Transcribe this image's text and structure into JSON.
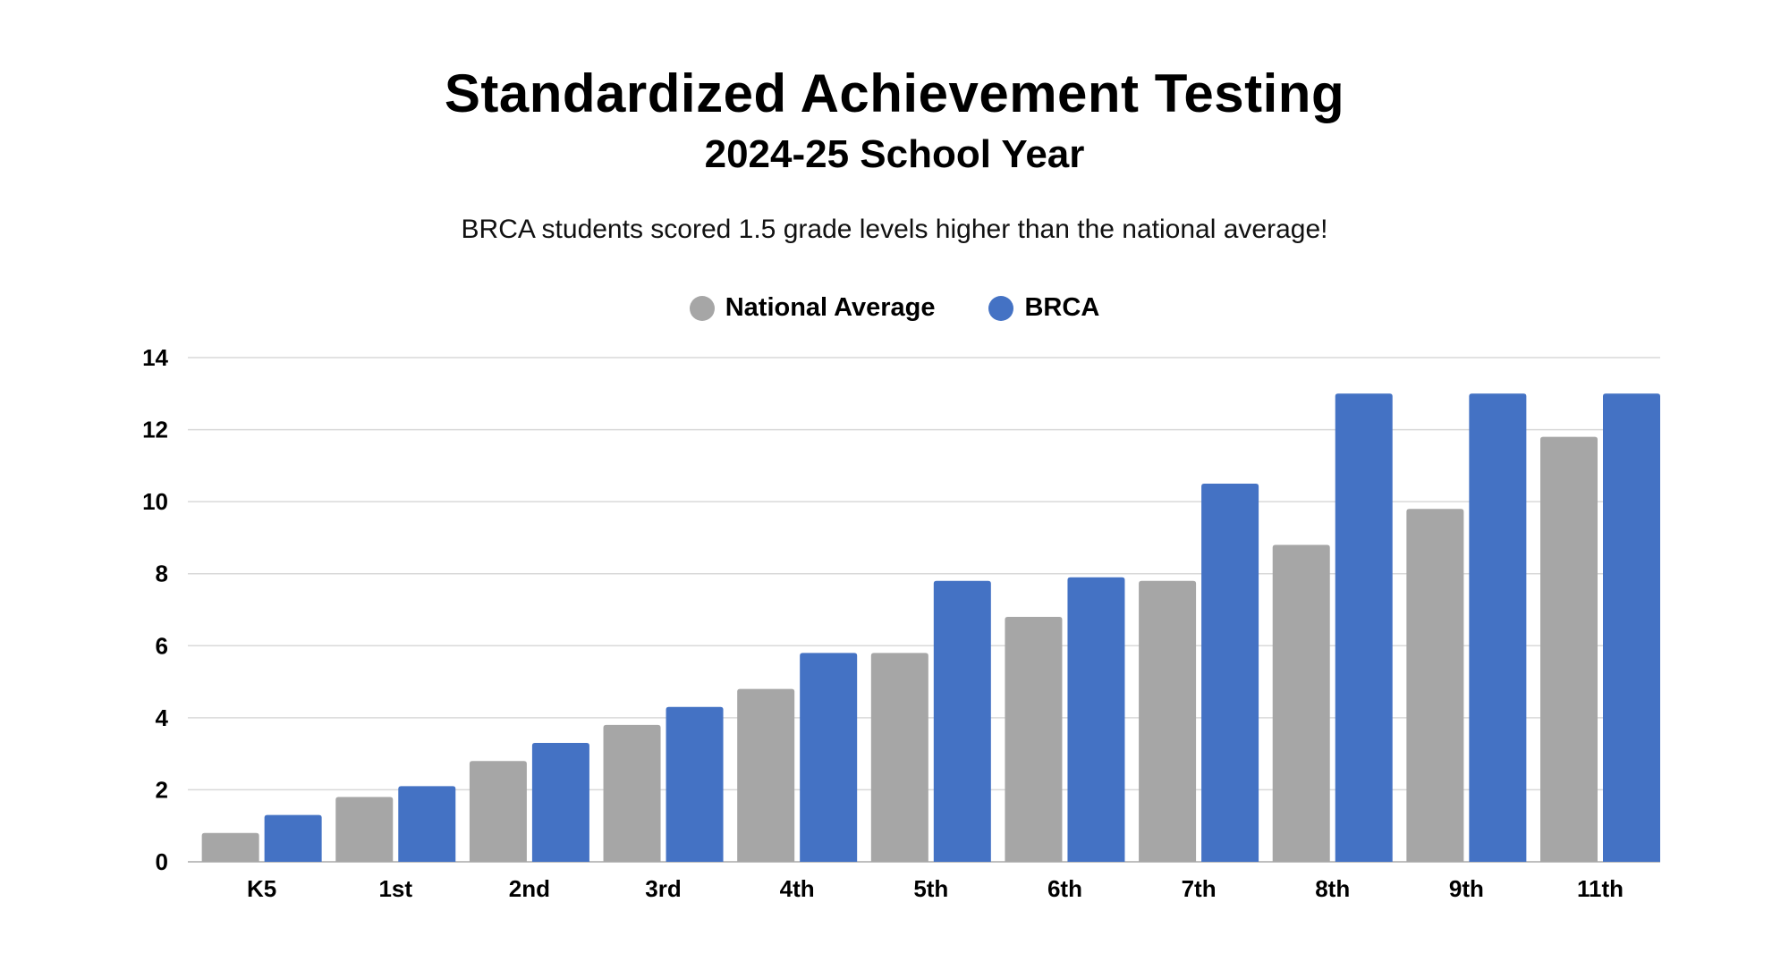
{
  "header": {
    "title": "Standardized Achievement Testing",
    "subtitle": "2024-25 School Year",
    "caption": "BRCA students scored 1.5 grade levels higher than the national average!"
  },
  "colors": {
    "national": "#A6A6A6",
    "brca": "#4472C4",
    "grid": "#D9D9D9",
    "axis": "#BFBFBF"
  },
  "chart_data": {
    "type": "bar",
    "categories": [
      "K5",
      "1st",
      "2nd",
      "3rd",
      "4th",
      "5th",
      "6th",
      "7th",
      "8th",
      "9th",
      "11th"
    ],
    "series": [
      {
        "name": "National Average",
        "values": [
          0.8,
          1.8,
          2.8,
          3.8,
          4.8,
          5.8,
          6.8,
          7.8,
          8.8,
          9.8,
          11.8
        ]
      },
      {
        "name": "BRCA",
        "values": [
          1.3,
          2.1,
          3.3,
          4.3,
          5.8,
          7.8,
          7.9,
          10.5,
          13.0,
          13.0,
          13.0
        ]
      }
    ],
    "ylim": [
      0,
      14
    ],
    "yticks": [
      "0",
      "2",
      "4",
      "6",
      "8",
      "10",
      "12",
      "14"
    ],
    "grid": true,
    "legend": "top-center"
  }
}
